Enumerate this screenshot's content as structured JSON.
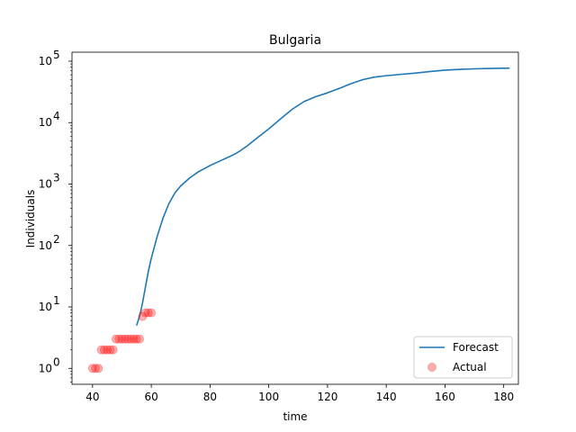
{
  "chart_data": {
    "type": "line",
    "title": "Bulgaria",
    "xlabel": "time",
    "ylabel": "Individuals",
    "xlim": [
      33,
      185
    ],
    "ylim": [
      0.55,
      140000
    ],
    "yscale": "log",
    "grid": false,
    "legend_position": "bottom-right",
    "x_ticks": [
      {
        "value": 40,
        "label": "40"
      },
      {
        "value": 60,
        "label": "60"
      },
      {
        "value": 80,
        "label": "80"
      },
      {
        "value": 100,
        "label": "100"
      },
      {
        "value": 120,
        "label": "120"
      },
      {
        "value": 140,
        "label": "140"
      },
      {
        "value": 160,
        "label": "160"
      },
      {
        "value": 180,
        "label": "180"
      }
    ],
    "y_ticks": [
      {
        "value": 1,
        "base": "10",
        "exp": "0"
      },
      {
        "value": 10,
        "base": "10",
        "exp": "1"
      },
      {
        "value": 100,
        "base": "10",
        "exp": "2"
      },
      {
        "value": 1000,
        "base": "10",
        "exp": "3"
      },
      {
        "value": 10000,
        "base": "10",
        "exp": "4"
      },
      {
        "value": 100000,
        "base": "10",
        "exp": "5"
      }
    ],
    "series": [
      {
        "name": "Forecast",
        "kind": "line",
        "color": "#1f77b4",
        "x": [
          55,
          56,
          57,
          58,
          59,
          60,
          62,
          64,
          66,
          68,
          70,
          73,
          76,
          80,
          84,
          88,
          90,
          93,
          96,
          100,
          104,
          108,
          112,
          116,
          120,
          124,
          128,
          132,
          136,
          140,
          145,
          150,
          155,
          160,
          165,
          170,
          175,
          182
        ],
        "y": [
          5,
          7,
          11.5,
          21,
          38,
          62,
          140,
          280,
          480,
          710,
          930,
          1250,
          1580,
          2000,
          2450,
          3000,
          3400,
          4300,
          5600,
          7900,
          11500,
          16500,
          22000,
          26500,
          30500,
          36000,
          43000,
          50000,
          55000,
          58000,
          61000,
          64000,
          68000,
          71500,
          73500,
          75000,
          76000,
          77000
        ]
      },
      {
        "name": "Actual",
        "kind": "scatter",
        "color": "#ff0000",
        "x": [
          40,
          41,
          42,
          43,
          44,
          45,
          46,
          47,
          48,
          49,
          50,
          51,
          52,
          53,
          54,
          55,
          56,
          57,
          58,
          59,
          60
        ],
        "y": [
          1,
          1,
          1,
          2,
          2,
          2,
          2,
          2,
          3,
          3,
          3,
          3,
          3,
          3,
          3,
          3,
          3,
          7,
          8,
          8,
          8
        ]
      }
    ]
  }
}
